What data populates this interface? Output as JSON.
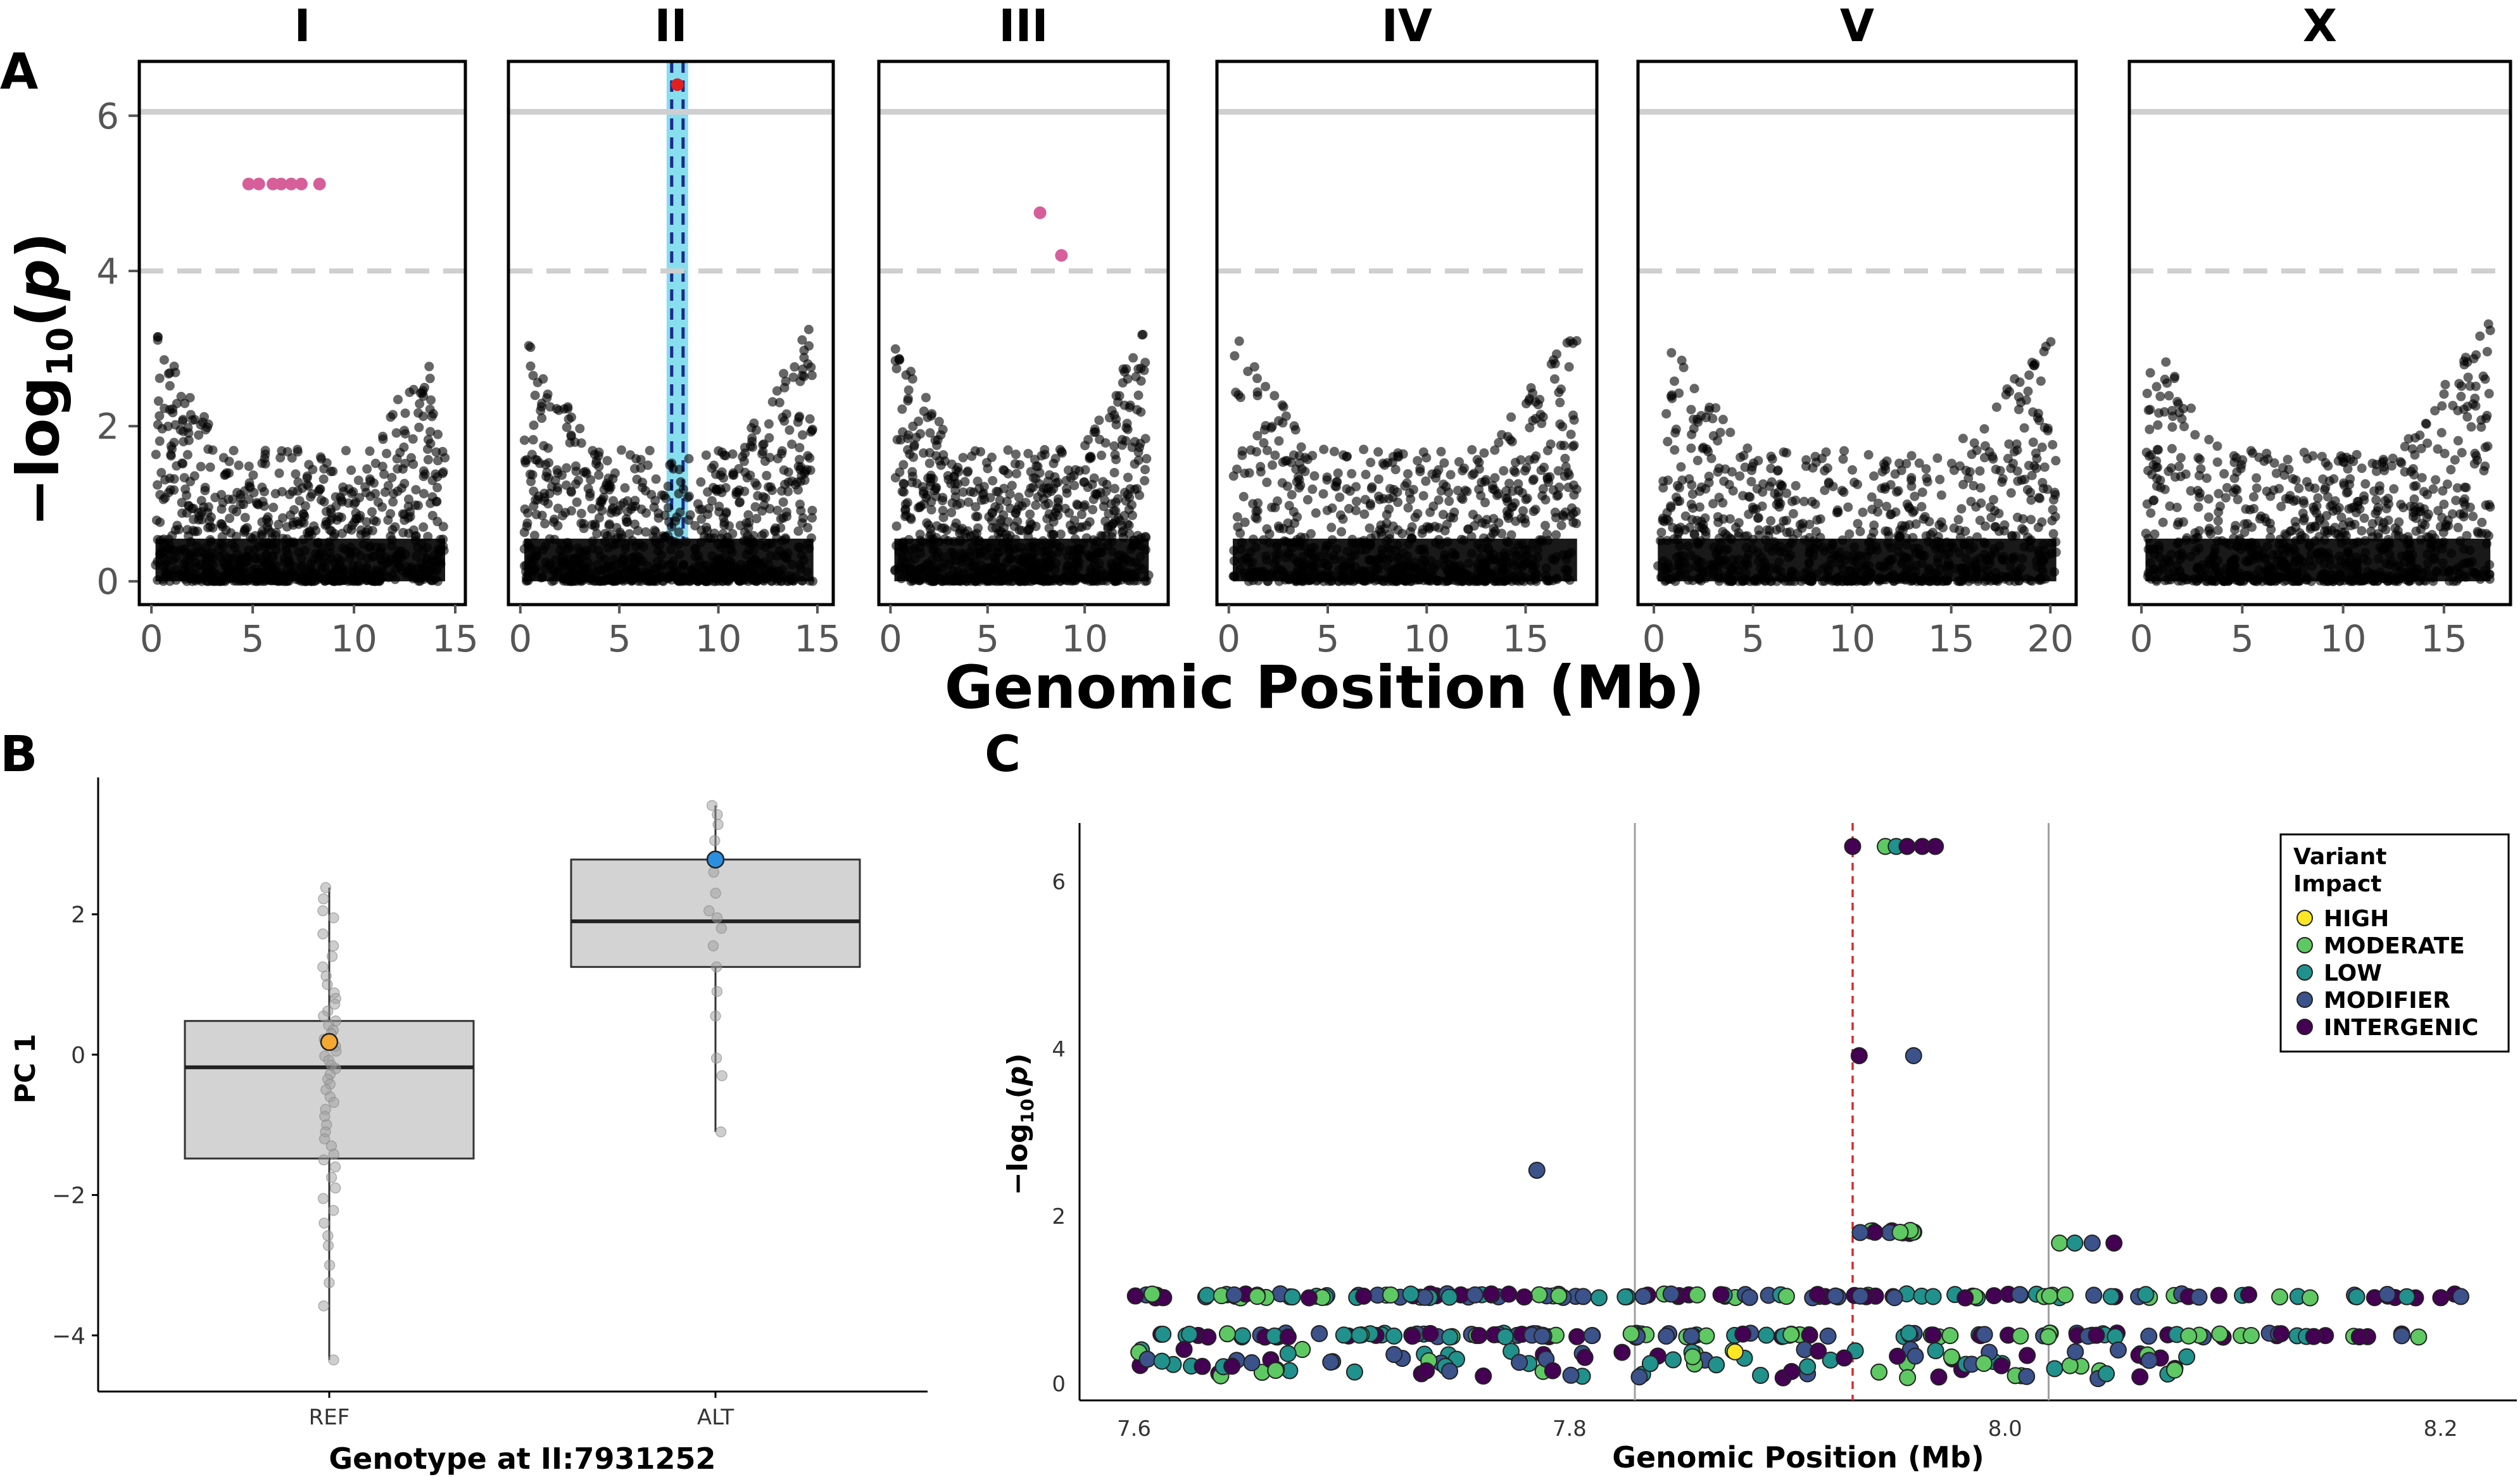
{
  "figure": {
    "panel_labels": [
      "A",
      "B",
      "C"
    ]
  },
  "chart_data": [
    {
      "panel": "A",
      "type": "scatter",
      "title": "",
      "xlabel": "Genomic Position (Mb)",
      "ylabel": "−log10(p)",
      "ylim": [
        -0.3,
        6.7
      ],
      "yticks": [
        "0",
        "2",
        "4",
        "6"
      ],
      "thresholds": {
        "solid": 6.05,
        "dashed": 4.0
      },
      "colors": {
        "point": "#000000",
        "significant": "#d65f9a",
        "highlight_band": "#5fd3e8",
        "peak_line": "#1a2a8c",
        "peak_point": "#e02020"
      },
      "facets": [
        {
          "name": "I",
          "xlim": [
            -0.6,
            15.5
          ],
          "xticks": [
            "0",
            "5",
            "10",
            "15"
          ],
          "significant_points": [
            {
              "x": 4.8,
              "y": 5.12
            },
            {
              "x": 5.3,
              "y": 5.12
            },
            {
              "x": 6.0,
              "y": 5.12
            },
            {
              "x": 6.4,
              "y": 5.12
            },
            {
              "x": 6.9,
              "y": 5.12
            },
            {
              "x": 7.4,
              "y": 5.12
            },
            {
              "x": 8.3,
              "y": 5.12
            }
          ]
        },
        {
          "name": "II",
          "xlim": [
            -0.6,
            15.8
          ],
          "xticks": [
            "0",
            "5",
            "10",
            "15"
          ],
          "peak_x": 7.93,
          "significant_points": [
            {
              "x": 7.93,
              "y": 6.4
            }
          ]
        },
        {
          "name": "III",
          "xlim": [
            -0.6,
            14.3
          ],
          "xticks": [
            "0",
            "5",
            "10"
          ],
          "significant_points": [
            {
              "x": 7.7,
              "y": 4.75
            },
            {
              "x": 8.8,
              "y": 4.2
            }
          ]
        },
        {
          "name": "IV",
          "xlim": [
            -0.6,
            18.6
          ],
          "xticks": [
            "0",
            "5",
            "10",
            "15"
          ],
          "significant_points": []
        },
        {
          "name": "V",
          "xlim": [
            -0.8,
            21.3
          ],
          "xticks": [
            "0",
            "5",
            "10",
            "15",
            "20"
          ],
          "significant_points": []
        },
        {
          "name": "X",
          "xlim": [
            -0.6,
            18.3
          ],
          "xticks": [
            "0",
            "5",
            "10",
            "15"
          ],
          "significant_points": []
        }
      ]
    },
    {
      "panel": "B",
      "type": "box",
      "title": "",
      "xlabel": "Genotype at II:7931252",
      "ylabel": "PC 1",
      "ylim": [
        -4.8,
        3.95
      ],
      "yticks": [
        "−4",
        "−2",
        "0",
        "2"
      ],
      "categories": [
        "REF",
        "ALT"
      ],
      "boxes": [
        {
          "category": "REF",
          "min": -4.35,
          "q1": -1.48,
          "median": -0.18,
          "q3": 0.48,
          "max": 2.38,
          "highlight": 0.18,
          "highlight_color": "#f5a830"
        },
        {
          "category": "ALT",
          "min": -1.1,
          "q1": 1.25,
          "median": 1.9,
          "q3": 2.78,
          "max": 3.55,
          "highlight": 2.78,
          "highlight_color": "#2a8fe0"
        }
      ],
      "points": {
        "REF": [
          2.38,
          2.22,
          2.05,
          1.95,
          1.72,
          1.55,
          1.4,
          1.25,
          1.12,
          1.0,
          0.88,
          0.8,
          0.72,
          0.62,
          0.55,
          0.48,
          0.42,
          0.35,
          0.3,
          0.22,
          0.12,
          0.05,
          -0.02,
          -0.08,
          -0.15,
          -0.2,
          -0.28,
          -0.35,
          -0.42,
          -0.5,
          -0.6,
          -0.68,
          -0.78,
          -0.88,
          -1.0,
          -1.1,
          -1.2,
          -1.3,
          -1.42,
          -1.5,
          -1.6,
          -1.75,
          -1.9,
          -2.05,
          -2.22,
          -2.4,
          -2.58,
          -2.72,
          -3.0,
          -3.25,
          -3.58,
          -4.35
        ],
        "ALT": [
          3.55,
          3.42,
          3.28,
          3.05,
          2.6,
          2.3,
          2.05,
          1.95,
          1.8,
          1.55,
          1.25,
          0.9,
          0.55,
          -0.05,
          -0.3,
          -1.1
        ]
      }
    },
    {
      "panel": "C",
      "type": "scatter",
      "title": "",
      "xlabel": "Genomic Position (Mb)",
      "ylabel": "−log10(p)",
      "xlim": [
        7.575,
        8.235
      ],
      "ylim": [
        -0.2,
        6.7
      ],
      "xticks": [
        "7.6",
        "7.8",
        "8.0",
        "8.2"
      ],
      "yticks": [
        "0",
        "2",
        "4",
        "6"
      ],
      "interval_lines": [
        7.83,
        8.02
      ],
      "peak_line": 7.93,
      "legend": {
        "title": "Variant\nImpact",
        "position": "top-right",
        "items": [
          {
            "label": "HIGH",
            "color": "#fde725"
          },
          {
            "label": "MODERATE",
            "color": "#5ec962"
          },
          {
            "label": "LOW",
            "color": "#21918c"
          },
          {
            "label": "MODIFIER",
            "color": "#3b528b"
          },
          {
            "label": "INTERGENIC",
            "color": "#440154"
          }
        ]
      },
      "highlight_points": [
        {
          "x": 7.785,
          "y": 2.55,
          "impact": "MODIFIER"
        },
        {
          "x": 7.933,
          "y": 3.92,
          "impact": "INTERGENIC"
        },
        {
          "x": 7.958,
          "y": 3.92,
          "impact": "MODIFIER"
        },
        {
          "x": 7.876,
          "y": 0.38,
          "impact": "HIGH"
        },
        {
          "x": 7.93,
          "y": 6.42,
          "impact": "INTERGENIC"
        },
        {
          "x": 7.945,
          "y": 6.42,
          "impact": "MODERATE"
        },
        {
          "x": 7.95,
          "y": 6.42,
          "impact": "LOW"
        },
        {
          "x": 7.955,
          "y": 6.42,
          "impact": "INTERGENIC"
        },
        {
          "x": 7.962,
          "y": 6.42,
          "impact": "INTERGENIC"
        },
        {
          "x": 7.968,
          "y": 6.42,
          "impact": "INTERGENIC"
        },
        {
          "x": 8.025,
          "y": 1.68,
          "impact": "MODERATE"
        },
        {
          "x": 8.032,
          "y": 1.68,
          "impact": "LOW"
        },
        {
          "x": 8.04,
          "y": 1.68,
          "impact": "MODIFIER"
        },
        {
          "x": 8.05,
          "y": 1.68,
          "impact": "INTERGENIC"
        }
      ],
      "bands": [
        {
          "y": 1.05,
          "x_from": 7.6,
          "x_to": 8.21
        },
        {
          "y": 0.58,
          "x_from": 7.61,
          "x_to": 8.2
        },
        {
          "y": 0.2,
          "x_from": 7.6,
          "x_to": 8.09
        },
        {
          "y": 1.82,
          "x_from": 7.932,
          "x_to": 7.97
        }
      ]
    }
  ]
}
